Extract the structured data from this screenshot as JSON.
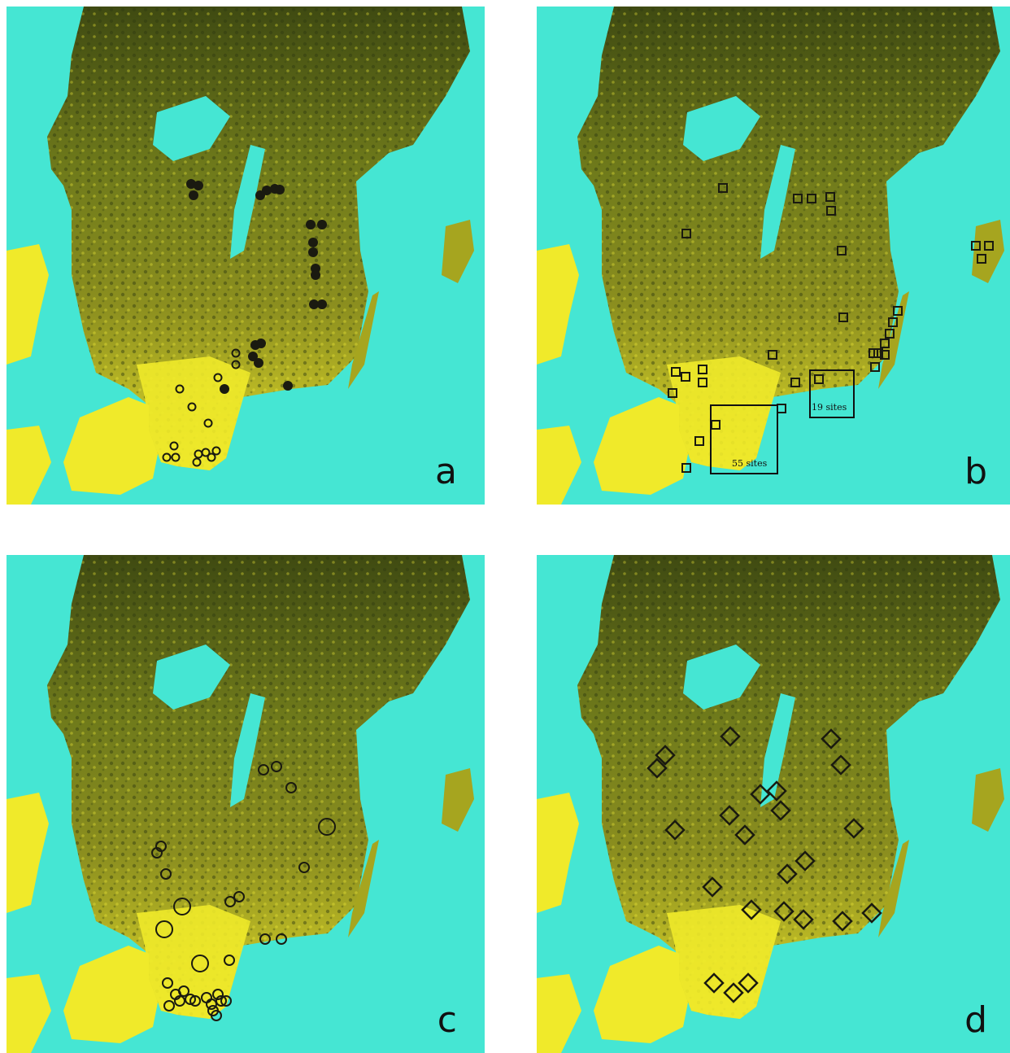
{
  "colors": {
    "sea": "#45e6d3",
    "land_yellow": "#f0ea2a",
    "land_olive": "#a6a51f",
    "land_dark": "#4f5a18",
    "lake": "#45e6d3",
    "marker": "#1a1a10"
  },
  "panels": [
    {
      "id": "a",
      "label": "a",
      "marker_type": "filled-and-open-circles"
    },
    {
      "id": "b",
      "label": "b",
      "marker_type": "squares",
      "boxes": [
        {
          "label": "55 sites"
        },
        {
          "label": "19 sites"
        }
      ]
    },
    {
      "id": "c",
      "label": "c",
      "marker_type": "circles-varied-size"
    },
    {
      "id": "d",
      "label": "d",
      "marker_type": "diamonds"
    }
  ]
}
